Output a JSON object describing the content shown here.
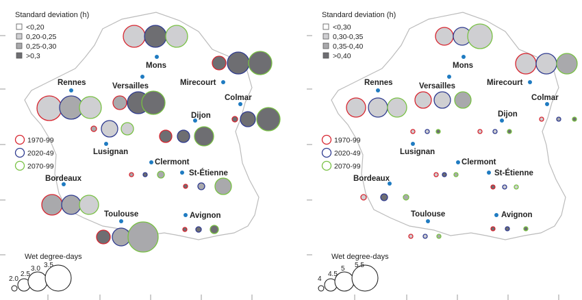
{
  "colors": {
    "border": "#bbbbbb",
    "city_dot": "#1f7bc1",
    "periods": [
      "#d7242e",
      "#2e3a8f",
      "#78c143"
    ],
    "sd_classes": [
      "#ffffff",
      "#cfcfd2",
      "#a9a9ac",
      "#6e6e72"
    ]
  },
  "periods": [
    "1970-99",
    "2020-49",
    "2070-99"
  ],
  "panels": [
    {
      "legend_title": "Standard deviation (h)",
      "sd_classes": [
        "<0,20",
        "0,20-0,25",
        "0,25-0,30",
        ">0,3"
      ],
      "size_title": "Wet degree-days",
      "size_labels": [
        "2.0",
        "2.5",
        "3.0",
        "3.5"
      ],
      "size_values": [
        2.0,
        2.5,
        3.0,
        3.5
      ],
      "cities": [
        {
          "name": "Mons",
          "circles": [
            {
              "value": 3.2,
              "sd": 1
            },
            {
              "value": 3.2,
              "sd": 3
            },
            {
              "value": 3.2,
              "sd": 1
            }
          ]
        },
        {
          "name": "Rennes",
          "circles": [
            {
              "value": 3.4,
              "sd": 1
            },
            {
              "value": 3.3,
              "sd": 2
            },
            {
              "value": 3.2,
              "sd": 1
            }
          ]
        },
        {
          "name": "Versailles",
          "circles": [
            {
              "value": 2.6,
              "sd": 2
            },
            {
              "value": 3.2,
              "sd": 3
            },
            {
              "value": 3.3,
              "sd": 3
            }
          ]
        },
        {
          "name": "Mirecourt",
          "circles": [
            {
              "value": 2.6,
              "sd": 3
            },
            {
              "value": 3.2,
              "sd": 3
            },
            {
              "value": 3.3,
              "sd": 3
            }
          ]
        },
        {
          "name": "Colmar",
          "circles": [
            {
              "value": 2.0,
              "sd": 3
            },
            {
              "value": 2.7,
              "sd": 3
            },
            {
              "value": 3.3,
              "sd": 3
            }
          ]
        },
        {
          "name": "Lusignan",
          "circles": [
            {
              "value": 2.0,
              "sd": 2
            },
            {
              "value": 2.8,
              "sd": 1
            },
            {
              "value": 2.5,
              "sd": 1
            }
          ]
        },
        {
          "name": "Dijon",
          "circles": [
            {
              "value": 2.5,
              "sd": 3
            },
            {
              "value": 2.5,
              "sd": 3
            },
            {
              "value": 3.0,
              "sd": 3
            }
          ]
        },
        {
          "name": "Clermont",
          "circles": [
            {
              "value": 1.8,
              "sd": 2
            },
            {
              "value": 1.8,
              "sd": 3
            },
            {
              "value": 2.1,
              "sd": 2
            }
          ]
        },
        {
          "name": "St-Étienne",
          "circles": [
            {
              "value": 1.6,
              "sd": 3
            },
            {
              "value": 2.1,
              "sd": 2
            },
            {
              "value": 2.8,
              "sd": 2
            }
          ]
        },
        {
          "name": "Bordeaux",
          "circles": [
            {
              "value": 3.1,
              "sd": 2
            },
            {
              "value": 3.0,
              "sd": 2
            },
            {
              "value": 3.0,
              "sd": 1
            }
          ]
        },
        {
          "name": "Toulouse",
          "circles": [
            {
              "value": 2.6,
              "sd": 3
            },
            {
              "value": 2.9,
              "sd": 2
            },
            {
              "value": 3.8,
              "sd": 2
            }
          ]
        },
        {
          "name": "Avignon",
          "circles": [
            {
              "value": 1.4,
              "sd": 3
            },
            {
              "value": 2.0,
              "sd": 3
            },
            {
              "value": 2.2,
              "sd": 3
            }
          ]
        }
      ]
    },
    {
      "legend_title": "Standard deviation (h)",
      "sd_classes": [
        "<0,30",
        "0,30-0,35",
        "0,35-0,40",
        ">0,40"
      ],
      "size_title": "Wet degree-days",
      "size_labels": [
        "4",
        "4.5",
        "5",
        "5.5"
      ],
      "size_values": [
        4,
        4.5,
        5,
        5.5
      ],
      "cities": [
        {
          "name": "Mons",
          "circles": [
            {
              "value": 4.9,
              "sd": 1
            },
            {
              "value": 4.9,
              "sd": 1
            },
            {
              "value": 5.4,
              "sd": 1
            }
          ]
        },
        {
          "name": "Rennes",
          "circles": [
            {
              "value": 5.0,
              "sd": 1
            },
            {
              "value": 5.0,
              "sd": 1
            },
            {
              "value": 5.0,
              "sd": 1
            }
          ]
        },
        {
          "name": "Versailles",
          "circles": [
            {
              "value": 4.8,
              "sd": 1
            },
            {
              "value": 4.8,
              "sd": 1
            },
            {
              "value": 4.8,
              "sd": 2
            }
          ]
        },
        {
          "name": "Mirecourt",
          "circles": [
            {
              "value": 5.1,
              "sd": 1
            },
            {
              "value": 5.1,
              "sd": 1
            },
            {
              "value": 5.1,
              "sd": 2
            }
          ]
        },
        {
          "name": "Colmar",
          "circles": [
            {
              "value": 3.5,
              "sd": 1
            },
            {
              "value": 3.5,
              "sd": 2
            },
            {
              "value": 3.5,
              "sd": 3
            }
          ]
        },
        {
          "name": "Lusignan",
          "circles": [
            {
              "value": 3.3,
              "sd": 1
            },
            {
              "value": 3.2,
              "sd": 1
            },
            {
              "value": 2.6,
              "sd": 3
            }
          ]
        },
        {
          "name": "Dijon",
          "circles": [
            {
              "value": 3.3,
              "sd": 1
            },
            {
              "value": 3.3,
              "sd": 1
            },
            {
              "value": 3.3,
              "sd": 3
            }
          ]
        },
        {
          "name": "Clermont",
          "circles": [
            {
              "value": 2.5,
              "sd": 1
            },
            {
              "value": 2.5,
              "sd": 3
            },
            {
              "value": 3.1,
              "sd": 2
            }
          ]
        },
        {
          "name": "St-Étienne",
          "circles": [
            {
              "value": 2.9,
              "sd": 3
            },
            {
              "value": 3.0,
              "sd": 1
            },
            {
              "value": 3.0,
              "sd": 1
            }
          ]
        },
        {
          "name": "Bordeaux",
          "circles": [
            {
              "value": 4.0,
              "sd": 1
            },
            {
              "value": 4.1,
              "sd": 3
            },
            {
              "value": 4.0,
              "sd": 2
            }
          ]
        },
        {
          "name": "Toulouse",
          "circles": [
            {
              "value": 3.4,
              "sd": 1
            },
            {
              "value": 3.4,
              "sd": 1
            },
            {
              "value": 3.4,
              "sd": 2
            }
          ]
        },
        {
          "name": "Avignon",
          "circles": [
            {
              "value": 2.9,
              "sd": 3
            },
            {
              "value": 2.9,
              "sd": 3
            },
            {
              "value": 3.4,
              "sd": 3
            }
          ]
        }
      ]
    }
  ]
}
